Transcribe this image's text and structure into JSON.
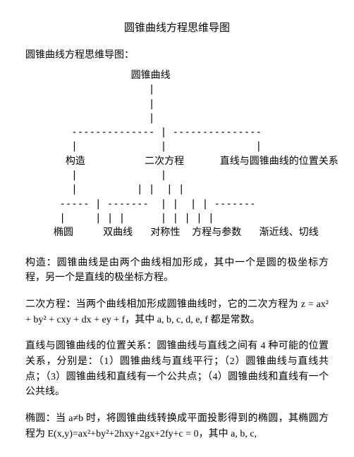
{
  "title": "圆锥曲线方程思维导图",
  "subtitle": "圆锥曲线方程思维导图：",
  "diagram": "             圆锥曲线\n                |\n                |\n                |\n   -------------- | ---------------\n   |              |               |\n  构造          二次方程      直线与圆锥曲线的位置关系\n   |              |\n   |          | |  | |\n ----- | -------  | |  | | -------\n |     | | |      | | | | |\n椭圆     双曲线   对称性  方程与参数   渐近线、切线",
  "paragraphs": {
    "p1": "构造：圆锥曲线是由两个曲线相加形成，其中一个是圆的极坐标方程，另一个是直线的极坐标方程。",
    "p2": "二次方程：当两个曲线相加形成圆锥曲线时，它的二次方程为 z = ax² + by² + cxy + dx + ey + f，其中 a, b, c, d, e, f 都是常数。",
    "p3": "直线与圆锥曲线的位置关系：圆锥曲线与直线之间有 4 种可能的位置关系，分别是：（1）圆锥曲线与直线平行；（2）圆锥曲线与直线共点；（3）圆锥曲线和直线有一个公共点；（4）圆锥曲线和直线有一个公共线。",
    "p4": "椭圆：当 a≠b 时，将圆锥曲线转换成平面投影得到的椭圆，其椭圆方程为 E(x,y)=ax²+by²+2hxy+2gx+2fy+c = 0，其中 a, b, c,"
  },
  "colors": {
    "background": "#ffffff",
    "text": "#000000"
  },
  "typography": {
    "body_fontsize": 14,
    "title_fontsize": 15,
    "line_height": 1.55,
    "font_family": "SimSun"
  }
}
